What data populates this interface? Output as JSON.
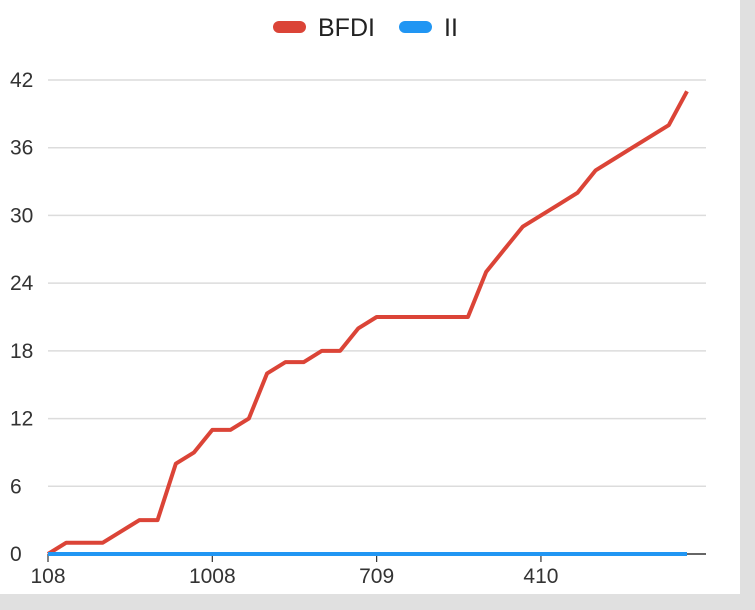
{
  "chart_data": {
    "type": "line",
    "title": "",
    "xlabel": "",
    "ylabel": "",
    "x_tick_labels": [
      {
        "index": 0,
        "label": "108"
      },
      {
        "index": 9,
        "label": "1008"
      },
      {
        "index": 18,
        "label": "709"
      },
      {
        "index": 27,
        "label": "410"
      }
    ],
    "point_count": 36,
    "ylim": [
      0,
      42
    ],
    "yticks": [
      0,
      6,
      12,
      18,
      24,
      30,
      36,
      42
    ],
    "grid": true,
    "legend_placement": "top",
    "series": [
      {
        "name": "BFDI",
        "color": "#db4437",
        "values": [
          0,
          1,
          1,
          1,
          2,
          3,
          3,
          8,
          9,
          11,
          11,
          12,
          16,
          17,
          17,
          18,
          18,
          20,
          21,
          21,
          21,
          21,
          21,
          21,
          25,
          27,
          29,
          30,
          31,
          32,
          34,
          35,
          36,
          37,
          38,
          41
        ]
      },
      {
        "name": "II",
        "color": "#2196f3",
        "values": [
          0,
          0,
          0,
          0,
          0,
          0,
          0,
          0,
          0,
          0,
          0,
          0,
          0,
          0,
          0,
          0,
          0,
          0,
          0,
          0,
          0,
          0,
          0,
          0,
          0,
          0,
          0,
          0,
          0,
          0,
          0,
          0,
          0,
          0,
          0,
          0
        ]
      }
    ]
  }
}
